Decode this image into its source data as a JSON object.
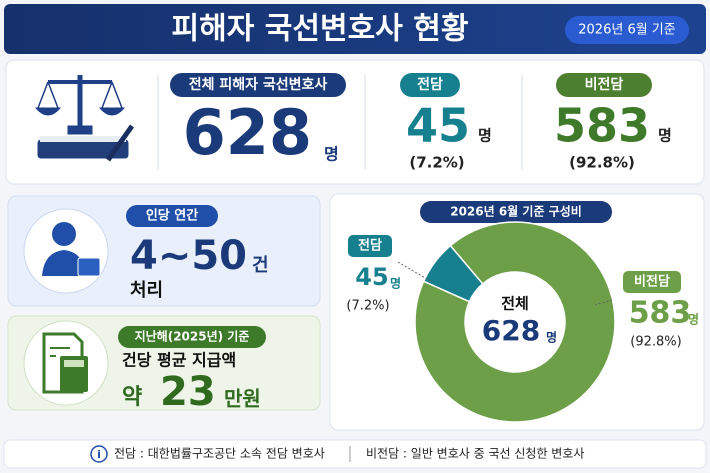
{
  "header": {
    "title": "피해자 국선변호사 현황",
    "badge": "2026년 6월 기준"
  },
  "stats": {
    "unit": "명",
    "total": {
      "label": "전체 피해자 국선변호사",
      "value": 628
    },
    "dedicated": {
      "label": "전담",
      "value": 45,
      "percent": "(7.2%)"
    },
    "non_dedicated": {
      "label": "비전담",
      "value": 583,
      "percent": "(92.8%)"
    }
  },
  "cards": [
    {
      "tag": "인당 연간",
      "value": "4~50",
      "unit": "건",
      "sub": "처리"
    },
    {
      "tag": "지난해(2025년) 기준",
      "text": "건당 평균 지급액",
      "prefix": "약",
      "value": 23,
      "unit": "만원"
    }
  ],
  "chart_data": {
    "type": "donut",
    "title": "2026년 6월 기준 구성비",
    "categories": [
      "전담",
      "비전담"
    ],
    "values": [
      45,
      583
    ],
    "colors": [
      "#17808f",
      "#6c9f47"
    ],
    "percent_labels": [
      "(7.2%)",
      "(92.8%)"
    ],
    "unit": "명",
    "center_label": "전체",
    "center_value": 628
  },
  "footer": {
    "notes": [
      "전담 : 대한법률구조공단 소속 전담 변호사",
      "비전담 : 일반 변호사 중 국선 신청한 변호사"
    ]
  }
}
